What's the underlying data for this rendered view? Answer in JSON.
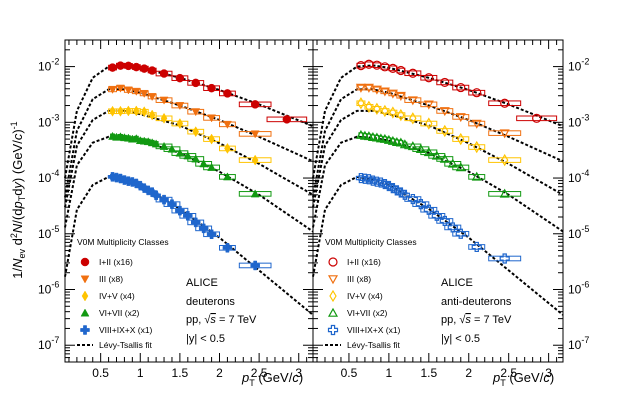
{
  "chart_data": {
    "type": "scatter",
    "scale": "log-y",
    "y_label": "1/N_ev d²N/(dp_T dy) (GeV/c)^-1",
    "x_label": "p_T (GeV/c)",
    "x_range": [
      0.05,
      3.18
    ],
    "y_range": [
      5e-08,
      0.03
    ],
    "x_ticks": [
      "0.5",
      "1",
      "1.5",
      "2",
      "2.5",
      "3"
    ],
    "x_tick_values": [
      0.5,
      1,
      1.5,
      2,
      2.5,
      3
    ],
    "y_ticks": [
      {
        "base": "10",
        "exp": "-7",
        "value": 1e-07
      },
      {
        "base": "10",
        "exp": "-6",
        "value": 1e-06
      },
      {
        "base": "10",
        "exp": "-5",
        "value": 1e-05
      },
      {
        "base": "10",
        "exp": "-4",
        "value": 0.0001
      },
      {
        "base": "10",
        "exp": "-3",
        "value": 0.001
      },
      {
        "base": "10",
        "exp": "-2",
        "value": 0.01
      }
    ],
    "legend_title": "V0M Multiplicity Classes",
    "fit_label": "Lévy-Tsallis fit",
    "annotations": {
      "experiment": "ALICE",
      "system_prefix": "pp, ",
      "sqrt_symbol": "√",
      "s_symbol": "s",
      "energy": " = 7 TeV",
      "rapidity": "|y| < 0.5"
    },
    "panels": [
      {
        "name": "deuterons",
        "open_markers": false,
        "series": [
          {
            "name": "I+II (x16)",
            "marker": "circle",
            "color": "#cc0000",
            "x": [
              0.65,
              0.75,
              0.85,
              0.95,
              1.05,
              1.15,
              1.3,
              1.5,
              1.7,
              1.9,
              2.1,
              2.45,
              2.85
            ],
            "y": [
              0.0096,
              0.0104,
              0.0103,
              0.0098,
              0.0092,
              0.0085,
              0.0075,
              0.0062,
              0.0051,
              0.0041,
              0.0033,
              0.0021,
              0.00113
            ]
          },
          {
            "name": "III (x8)",
            "marker": "triangle-down",
            "color": "#f07010",
            "x": [
              0.65,
              0.75,
              0.85,
              0.95,
              1.05,
              1.15,
              1.3,
              1.5,
              1.7,
              1.9,
              2.1,
              2.45
            ],
            "y": [
              0.0039,
              0.0041,
              0.0038,
              0.0036,
              0.0033,
              0.0029,
              0.0025,
              0.002,
              0.00155,
              0.0012,
              0.00092,
              0.00062
            ]
          },
          {
            "name": "IV+V (x4)",
            "marker": "diamond",
            "color": "#ffc400",
            "x": [
              0.65,
              0.75,
              0.85,
              0.95,
              1.05,
              1.15,
              1.3,
              1.5,
              1.7,
              1.9,
              2.1,
              2.45
            ],
            "y": [
              0.00158,
              0.00158,
              0.0016,
              0.0016,
              0.00155,
              0.00135,
              0.00118,
              0.00095,
              0.00068,
              0.0005,
              0.00034,
              0.00021
            ]
          },
          {
            "name": "VI+VII (x2)",
            "marker": "triangle-up",
            "color": "#119911",
            "x": [
              0.65,
              0.7,
              0.75,
              0.8,
              0.85,
              0.9,
              0.95,
              1.0,
              1.05,
              1.1,
              1.15,
              1.2,
              1.3,
              1.4,
              1.5,
              1.6,
              1.7,
              1.8,
              1.9,
              2.1,
              2.45
            ],
            "y": [
              0.00056,
              0.00054,
              0.00055,
              0.00053,
              0.00052,
              0.0005,
              0.00051,
              0.00047,
              0.00046,
              0.00045,
              0.00043,
              0.00041,
              0.00037,
              0.00033,
              0.00028,
              0.00025,
              0.00022,
              0.00018,
              0.000155,
              0.000105,
              5.2e-05
            ]
          },
          {
            "name": "VIII+IX+X (x1)",
            "marker": "cross",
            "color": "#1f66cc",
            "x": [
              0.65,
              0.7,
              0.75,
              0.8,
              0.85,
              0.9,
              0.95,
              1.0,
              1.05,
              1.1,
              1.15,
              1.2,
              1.3,
              1.4,
              1.5,
              1.6,
              1.7,
              1.8,
              1.9,
              2.1,
              2.45
            ],
            "y": [
              0.000105,
              0.000102,
              9.8e-05,
              9.2e-05,
              8.8e-05,
              8.5e-05,
              8e-05,
              7.3e-05,
              6.6e-05,
              6e-05,
              5.6e-05,
              4.9e-05,
              4.1e-05,
              3.4e-05,
              2.6e-05,
              2.1e-05,
              1.6e-05,
              1.25e-05,
              9.8e-06,
              5.6e-06,
              2.7e-06
            ]
          }
        ]
      },
      {
        "name": "anti-deuterons",
        "open_markers": true,
        "series": [
          {
            "name": "I+II (x16)",
            "marker": "circle",
            "color": "#cc0000",
            "x": [
              0.65,
              0.75,
              0.85,
              0.95,
              1.05,
              1.15,
              1.3,
              1.5,
              1.7,
              1.9,
              2.1,
              2.45,
              2.85
            ],
            "y": [
              0.0104,
              0.011,
              0.0106,
              0.0099,
              0.0093,
              0.0085,
              0.0076,
              0.0063,
              0.0052,
              0.0042,
              0.0034,
              0.0022,
              0.00118
            ]
          },
          {
            "name": "III (x8)",
            "marker": "triangle-down",
            "color": "#f07010",
            "x": [
              0.65,
              0.75,
              0.85,
              0.95,
              1.05,
              1.15,
              1.3,
              1.5,
              1.7,
              1.9,
              2.1,
              2.45
            ],
            "y": [
              0.0042,
              0.0042,
              0.0039,
              0.0036,
              0.0033,
              0.003,
              0.0025,
              0.0021,
              0.0016,
              0.00125,
              0.00095,
              0.00064
            ]
          },
          {
            "name": "IV+V (x4)",
            "marker": "diamond",
            "color": "#ffc400",
            "x": [
              0.65,
              0.75,
              0.85,
              0.95,
              1.05,
              1.15,
              1.3,
              1.5,
              1.7,
              1.9,
              2.1,
              2.45
            ],
            "y": [
              0.0022,
              0.0019,
              0.00175,
              0.0016,
              0.0015,
              0.00135,
              0.00118,
              0.00095,
              0.0007,
              0.0005,
              0.00036,
              0.00021
            ]
          },
          {
            "name": "VI+VII (x2)",
            "marker": "triangle-up",
            "color": "#119911",
            "x": [
              0.65,
              0.7,
              0.75,
              0.8,
              0.85,
              0.9,
              0.95,
              1.0,
              1.05,
              1.1,
              1.15,
              1.2,
              1.3,
              1.4,
              1.5,
              1.6,
              1.7,
              1.8,
              1.9,
              2.1,
              2.45
            ],
            "y": [
              0.00059,
              0.00057,
              0.00056,
              0.00054,
              0.00053,
              0.00051,
              0.0005,
              0.00048,
              0.00046,
              0.00044,
              0.00043,
              0.0004,
              0.00037,
              0.00033,
              0.00029,
              0.00025,
              0.00022,
              0.00018,
              0.000155,
              0.000105,
              5.2e-05
            ]
          },
          {
            "name": "VIII+IX+X (x1)",
            "marker": "cross",
            "color": "#1f66cc",
            "x": [
              0.65,
              0.7,
              0.75,
              0.8,
              0.85,
              0.9,
              0.95,
              1.0,
              1.05,
              1.1,
              1.15,
              1.2,
              1.3,
              1.4,
              1.5,
              1.6,
              1.7,
              1.8,
              1.9,
              2.1,
              2.45
            ],
            "y": [
              0.0001,
              9.7e-05,
              9.5e-05,
              9e-05,
              8.6e-05,
              8.3e-05,
              7.8e-05,
              7.2e-05,
              6.6e-05,
              6e-05,
              5.5e-05,
              5e-05,
              4.2e-05,
              3.4e-05,
              2.7e-05,
              2.1e-05,
              1.7e-05,
              1.3e-05,
              1e-05,
              5.8e-06,
              3.6e-06
            ]
          }
        ]
      }
    ],
    "fit_curves": [
      {
        "label": "I+II (x16)",
        "points": [
          [
            0.05,
            0.0001
          ],
          [
            0.2,
            0.0016
          ],
          [
            0.4,
            0.0063
          ],
          [
            0.6,
            0.01
          ],
          [
            0.8,
            0.0105
          ],
          [
            1.0,
            0.0095
          ],
          [
            1.5,
            0.0063
          ],
          [
            2.0,
            0.0038
          ],
          [
            2.5,
            0.0021
          ],
          [
            3.18,
            0.00085
          ]
        ]
      },
      {
        "label": "III (x8)",
        "points": [
          [
            0.05,
            4.5e-05
          ],
          [
            0.2,
            0.0007
          ],
          [
            0.4,
            0.0026
          ],
          [
            0.6,
            0.0039
          ],
          [
            0.8,
            0.0039
          ],
          [
            1.0,
            0.0034
          ],
          [
            1.5,
            0.002
          ],
          [
            2.0,
            0.0011
          ],
          [
            2.5,
            0.00055
          ],
          [
            3.18,
            0.0002
          ]
        ]
      },
      {
        "label": "IV+V (x4)",
        "points": [
          [
            0.05,
            3e-05
          ],
          [
            0.2,
            0.00038
          ],
          [
            0.4,
            0.0011
          ],
          [
            0.6,
            0.0016
          ],
          [
            0.8,
            0.0016
          ],
          [
            1.0,
            0.0014
          ],
          [
            1.5,
            0.00088
          ],
          [
            2.0,
            0.00042
          ],
          [
            2.5,
            0.00018
          ],
          [
            3.18,
            5e-05
          ]
        ]
      },
      {
        "label": "VI+VII (x2)",
        "points": [
          [
            0.05,
            1.3e-05
          ],
          [
            0.2,
            0.00017
          ],
          [
            0.4,
            0.00043
          ],
          [
            0.6,
            0.00055
          ],
          [
            0.8,
            0.00053
          ],
          [
            1.0,
            0.00047
          ],
          [
            1.5,
            0.00028
          ],
          [
            2.0,
            0.00013
          ],
          [
            2.5,
            5e-05
          ],
          [
            3.18,
            1.1e-05
          ]
        ]
      },
      {
        "label": "VIII+IX+X (x1)",
        "points": [
          [
            0.05,
            1.7e-06
          ],
          [
            0.2,
            2.7e-05
          ],
          [
            0.4,
            7.5e-05
          ],
          [
            0.6,
            0.000105
          ],
          [
            0.8,
            9.3e-05
          ],
          [
            1.0,
            7.5e-05
          ],
          [
            1.5,
            2.8e-05
          ],
          [
            2.0,
            8.5e-06
          ],
          [
            2.5,
            2.2e-06
          ],
          [
            3.18,
            3.5e-07
          ]
        ]
      }
    ]
  }
}
